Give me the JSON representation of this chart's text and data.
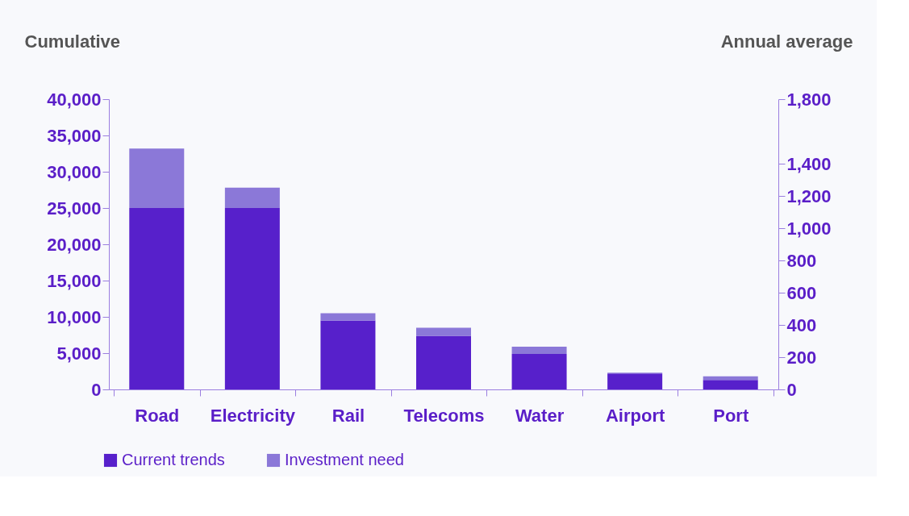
{
  "chart_data": {
    "type": "bar",
    "stacked": true,
    "categories": [
      "Road",
      "Electricity",
      "Rail",
      "Telecoms",
      "Water",
      "Airport",
      "Port"
    ],
    "series": [
      {
        "name": "Current trends",
        "color": "#5720cb",
        "values": [
          25000,
          25000,
          9500,
          7400,
          4900,
          2200,
          1300
        ]
      },
      {
        "name": "Investment need",
        "color": "#8b78d8",
        "values": [
          8200,
          2800,
          1000,
          1100,
          1000,
          100,
          500
        ]
      }
    ],
    "ylabel": "Cumulative",
    "y2label": "Annual average",
    "ylim": [
      0,
      40000
    ],
    "yticks": [
      {
        "value": 0,
        "label": "0"
      },
      {
        "value": 5000,
        "label": "5,000"
      },
      {
        "value": 10000,
        "label": "10,000"
      },
      {
        "value": 15000,
        "label": "15,000"
      },
      {
        "value": 20000,
        "label": "20,000"
      },
      {
        "value": 25000,
        "label": "25,000"
      },
      {
        "value": 30000,
        "label": "30,000"
      },
      {
        "value": 35000,
        "label": "35,000"
      },
      {
        "value": 40000,
        "label": "40,000"
      }
    ],
    "y2lim": [
      0,
      1800
    ],
    "y2ticks": [
      {
        "value": 0,
        "label": "0"
      },
      {
        "value": 200,
        "label": "200"
      },
      {
        "value": 400,
        "label": "400"
      },
      {
        "value": 600,
        "label": "600"
      },
      {
        "value": 800,
        "label": "800"
      },
      {
        "value": 1000,
        "label": "1,000"
      },
      {
        "value": 1200,
        "label": "1,200"
      },
      {
        "value": 1400,
        "label": "1,400"
      },
      {
        "value": 1800,
        "label": "1,800"
      }
    ],
    "legend": "bottom left",
    "grid": false
  }
}
